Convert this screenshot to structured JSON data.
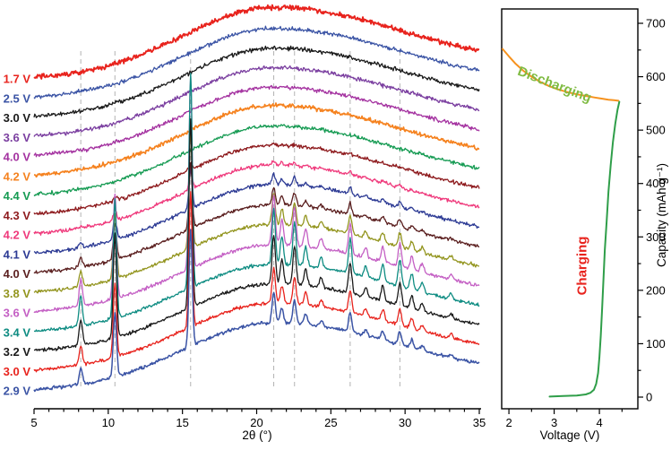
{
  "figure": {
    "background": "#ffffff"
  },
  "chart_data": [
    {
      "type": "line",
      "panel": "in-situ-xrd-stack",
      "title": "",
      "xlabel": "2θ (°)",
      "xlim": [
        5,
        35
      ],
      "xticks": [
        5,
        10,
        15,
        20,
        25,
        30,
        35
      ],
      "guide_lines_2theta": [
        8.15,
        10.45,
        15.55,
        21.15,
        22.55,
        26.3,
        29.65
      ],
      "guide_color": "#b3b3b3",
      "peak_profile": [
        [
          8.15,
          0.14
        ],
        [
          10.45,
          0.55
        ],
        [
          15.55,
          1.0
        ],
        [
          21.15,
          0.26
        ],
        [
          21.7,
          0.13
        ],
        [
          22.55,
          0.2
        ],
        [
          23.3,
          0.09
        ],
        [
          24.35,
          0.05
        ],
        [
          26.3,
          0.16
        ],
        [
          27.35,
          0.05
        ],
        [
          28.5,
          0.08
        ],
        [
          29.65,
          0.12
        ],
        [
          30.45,
          0.07
        ],
        [
          31.15,
          0.045
        ],
        [
          33.1,
          0.03
        ]
      ],
      "series": [
        {
          "label": "1.7 V",
          "color": "#e8231d",
          "peak_amp": 0,
          "hump": 74,
          "noise": 2.8,
          "width": 1.9
        },
        {
          "label": "2.5 V",
          "color": "#3b54a5",
          "peak_amp": 0,
          "hump": 72,
          "noise": 2.2,
          "width": 1.3
        },
        {
          "label": "3.0 V",
          "color": "#1a1a1a",
          "peak_amp": 0,
          "hump": 72,
          "noise": 2.2,
          "width": 1.3
        },
        {
          "label": "3.6 V",
          "color": "#7b3fa0",
          "peak_amp": 0,
          "hump": 72,
          "noise": 2.2,
          "width": 1.3
        },
        {
          "label": "4.0 V",
          "color": "#a432a0",
          "peak_amp": 0,
          "hump": 72,
          "noise": 2.2,
          "width": 1.3
        },
        {
          "label": "4.2 V",
          "color": "#f5821f",
          "peak_amp": 0,
          "hump": 73,
          "noise": 2.2,
          "width": 1.7
        },
        {
          "label": "4.4 V",
          "color": "#169b53",
          "peak_amp": 0,
          "hump": 72,
          "noise": 2.0,
          "width": 1.3
        },
        {
          "label": "4.3 V",
          "color": "#8e1b1e",
          "peak_amp": 8,
          "hump": 72,
          "noise": 2.0,
          "width": 1.3
        },
        {
          "label": "4.2 V",
          "color": "#ef3a7c",
          "peak_amp": 20,
          "hump": 72,
          "noise": 2.0,
          "width": 1.3
        },
        {
          "label": "4.1 V",
          "color": "#2c3a94",
          "peak_amp": 45,
          "hump": 72,
          "noise": 2.0,
          "width": 1.3
        },
        {
          "label": "4.0 V",
          "color": "#5a1e1e",
          "peak_amp": 75,
          "hump": 71,
          "noise": 1.9,
          "width": 1.3
        },
        {
          "label": "3.8 V",
          "color": "#93951f",
          "peak_amp": 130,
          "hump": 71,
          "noise": 1.9,
          "width": 1.3
        },
        {
          "label": "3.6 V",
          "color": "#c45fc4",
          "peak_amp": 215,
          "hump": 70,
          "noise": 1.8,
          "width": 1.3
        },
        {
          "label": "3.4 V",
          "color": "#0e8c82",
          "peak_amp": 240,
          "hump": 70,
          "noise": 1.8,
          "width": 1.3
        },
        {
          "label": "3.2 V",
          "color": "#1a1a1a",
          "peak_amp": 210,
          "hump": 70,
          "noise": 1.8,
          "width": 1.3
        },
        {
          "label": "3.0 V",
          "color": "#e8231d",
          "peak_amp": 150,
          "hump": 70,
          "noise": 1.8,
          "width": 1.3
        },
        {
          "label": "2.9 V",
          "color": "#3b54a5",
          "peak_amp": 130,
          "hump": 70,
          "noise": 1.8,
          "width": 1.5
        }
      ]
    },
    {
      "type": "line",
      "panel": "voltage-capacity",
      "title": "",
      "xlabel": "Voltage (V)",
      "ylabel": "Capacity (mAh g⁻¹)",
      "xlim": [
        1.84,
        4.85
      ],
      "xticks": [
        2,
        3,
        4
      ],
      "ylim": [
        0,
        700
      ],
      "yticks": [
        0,
        100,
        200,
        300,
        400,
        500,
        600,
        700
      ],
      "series": [
        {
          "name": "Discharging",
          "color": "#f6921e",
          "label_color": "#7fbb42",
          "points": [
            [
              1.86,
              652
            ],
            [
              2.0,
              638
            ],
            [
              2.15,
              624
            ],
            [
              2.32,
              611
            ],
            [
              2.5,
              600
            ],
            [
              2.7,
              590
            ],
            [
              2.9,
              582
            ],
            [
              3.1,
              576
            ],
            [
              3.3,
              571
            ],
            [
              3.5,
              567
            ],
            [
              3.7,
              564
            ],
            [
              3.9,
              561
            ],
            [
              4.05,
              559
            ],
            [
              4.2,
              557
            ],
            [
              4.32,
              556
            ],
            [
              4.42,
              555
            ]
          ]
        },
        {
          "name": "Charging",
          "color": "#2f9e49",
          "label_color": "#e8231d",
          "points": [
            [
              2.9,
              1
            ],
            [
              3.2,
              2
            ],
            [
              3.5,
              3
            ],
            [
              3.7,
              5
            ],
            [
              3.8,
              8
            ],
            [
              3.88,
              14
            ],
            [
              3.93,
              25
            ],
            [
              3.97,
              45
            ],
            [
              4.0,
              75
            ],
            [
              4.03,
              115
            ],
            [
              4.06,
              165
            ],
            [
              4.09,
              220
            ],
            [
              4.12,
              275
            ],
            [
              4.16,
              330
            ],
            [
              4.2,
              385
            ],
            [
              4.25,
              435
            ],
            [
              4.3,
              478
            ],
            [
              4.35,
              512
            ],
            [
              4.4,
              538
            ],
            [
              4.44,
              553
            ]
          ]
        }
      ]
    }
  ]
}
